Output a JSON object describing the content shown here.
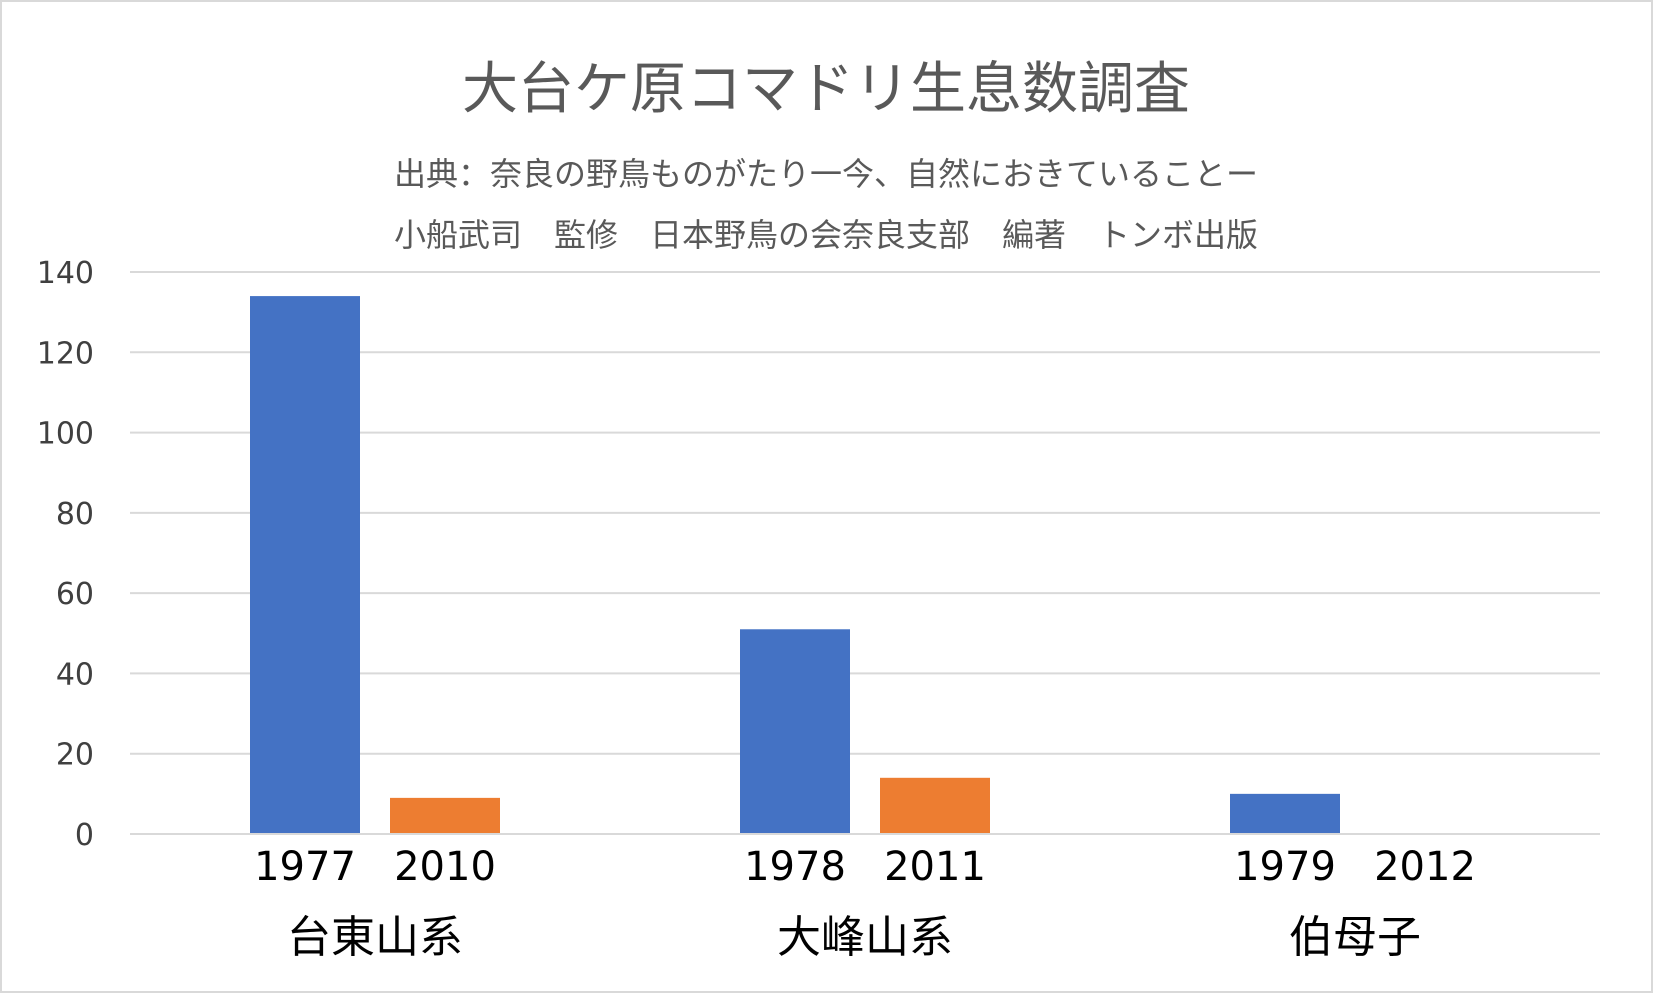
{
  "chart_data": {
    "type": "bar",
    "title": "大台ケ原コマドリ生息数調査",
    "subtitle": [
      "出典：奈良の野鳥ものがたり一今、自然におきていることー",
      "小船武司　監修　日本野鳥の会奈良支部　編著　トンボ出版"
    ],
    "xlabel": "",
    "ylabel": "",
    "ylim": [
      0,
      140
    ],
    "yticks": [
      0,
      20,
      40,
      60,
      80,
      100,
      120,
      140
    ],
    "grid": true,
    "groups": [
      {
        "name": "台東山系",
        "bars": [
          {
            "label": "1977",
            "value": 134,
            "color": "#4472C4"
          },
          {
            "label": "2010",
            "value": 9,
            "color": "#ED7D31"
          }
        ]
      },
      {
        "name": "大峰山系",
        "bars": [
          {
            "label": "1978",
            "value": 51,
            "color": "#4472C4"
          },
          {
            "label": "2011",
            "value": 14,
            "color": "#ED7D31"
          }
        ]
      },
      {
        "name": "伯母子",
        "bars": [
          {
            "label": "1979",
            "value": 10,
            "color": "#4472C4"
          },
          {
            "label": "2012",
            "value": 0,
            "color": "#ED7D31"
          }
        ]
      }
    ]
  },
  "colors": {
    "background": "#FFFFFF",
    "gridline": "#D9D9D9",
    "axis": "#D9D9D9",
    "border": "#D9D9D9",
    "text": "#595959"
  }
}
